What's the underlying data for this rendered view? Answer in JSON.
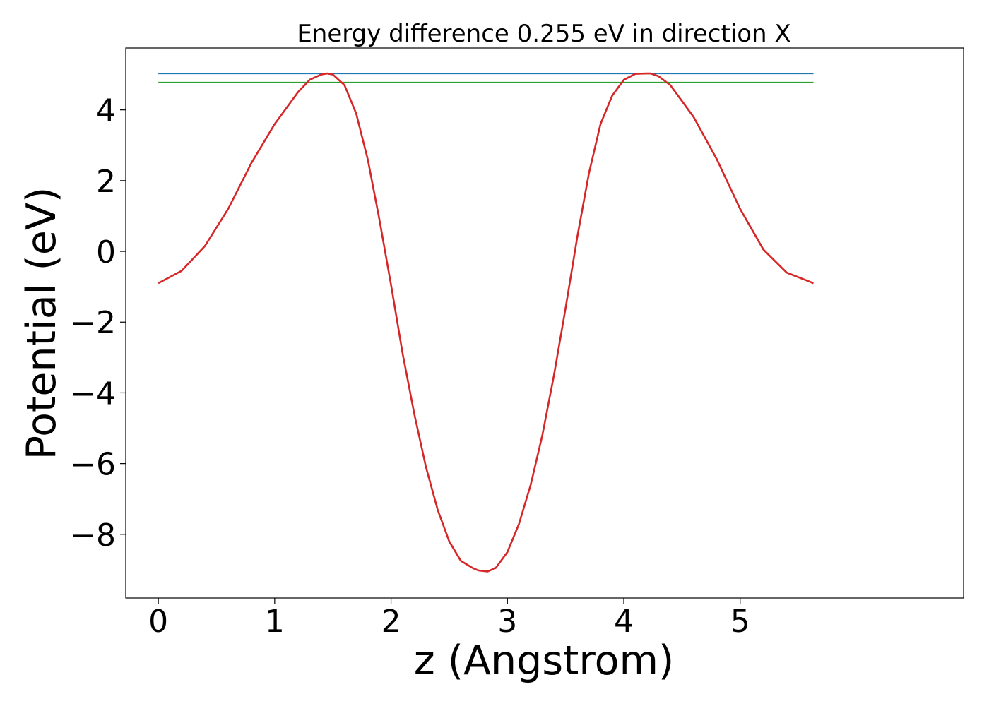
{
  "chart_data": {
    "type": "line",
    "title": "Energy difference 0.255 eV in direction X",
    "xlabel": "z (Angstrom)",
    "ylabel": "Potential (eV)",
    "xlim": [
      -0.28,
      6.92
    ],
    "ylim": [
      -9.8,
      5.75
    ],
    "x_ticks": [
      0,
      1,
      2,
      3,
      4,
      5
    ],
    "x_tick_labels": [
      "0",
      "1",
      "2",
      "3",
      "4",
      "5"
    ],
    "y_ticks": [
      4,
      2,
      0,
      -2,
      -4,
      -6,
      -8
    ],
    "y_tick_labels": [
      "4",
      "2",
      "0",
      "−2",
      "−4",
      "−6",
      "−8"
    ],
    "grid": false,
    "legend": "none",
    "series": [
      {
        "color": "#1f77b4",
        "style": "horizontal",
        "x": [
          0,
          5.63
        ],
        "y": [
          5.03,
          5.03
        ]
      },
      {
        "color": "#2ca02c",
        "style": "horizontal",
        "x": [
          0,
          5.63
        ],
        "y": [
          4.775,
          4.775
        ]
      },
      {
        "color": "#d62728",
        "style": "curve",
        "x": [
          0,
          0.2,
          0.4,
          0.6,
          0.8,
          1.0,
          1.2,
          1.3,
          1.4,
          1.45,
          1.5,
          1.6,
          1.7,
          1.8,
          1.9,
          2.0,
          2.1,
          2.2,
          2.3,
          2.4,
          2.5,
          2.6,
          2.7,
          2.75,
          2.83,
          2.9,
          3.0,
          3.1,
          3.2,
          3.3,
          3.4,
          3.5,
          3.6,
          3.7,
          3.8,
          3.9,
          4.0,
          4.1,
          4.2,
          4.23,
          4.3,
          4.4,
          4.6,
          4.8,
          5.0,
          5.2,
          5.4,
          5.63
        ],
        "y": [
          -0.9,
          -0.55,
          0.15,
          1.2,
          2.5,
          3.6,
          4.5,
          4.85,
          5.0,
          5.03,
          5.0,
          4.7,
          3.9,
          2.6,
          0.9,
          -0.95,
          -2.9,
          -4.6,
          -6.1,
          -7.3,
          -8.2,
          -8.75,
          -8.95,
          -9.02,
          -9.05,
          -8.95,
          -8.5,
          -7.7,
          -6.6,
          -5.2,
          -3.5,
          -1.6,
          0.4,
          2.2,
          3.6,
          4.4,
          4.85,
          5.02,
          5.03,
          5.03,
          4.95,
          4.7,
          3.8,
          2.6,
          1.2,
          0.05,
          -0.6,
          -0.9
        ]
      }
    ]
  }
}
